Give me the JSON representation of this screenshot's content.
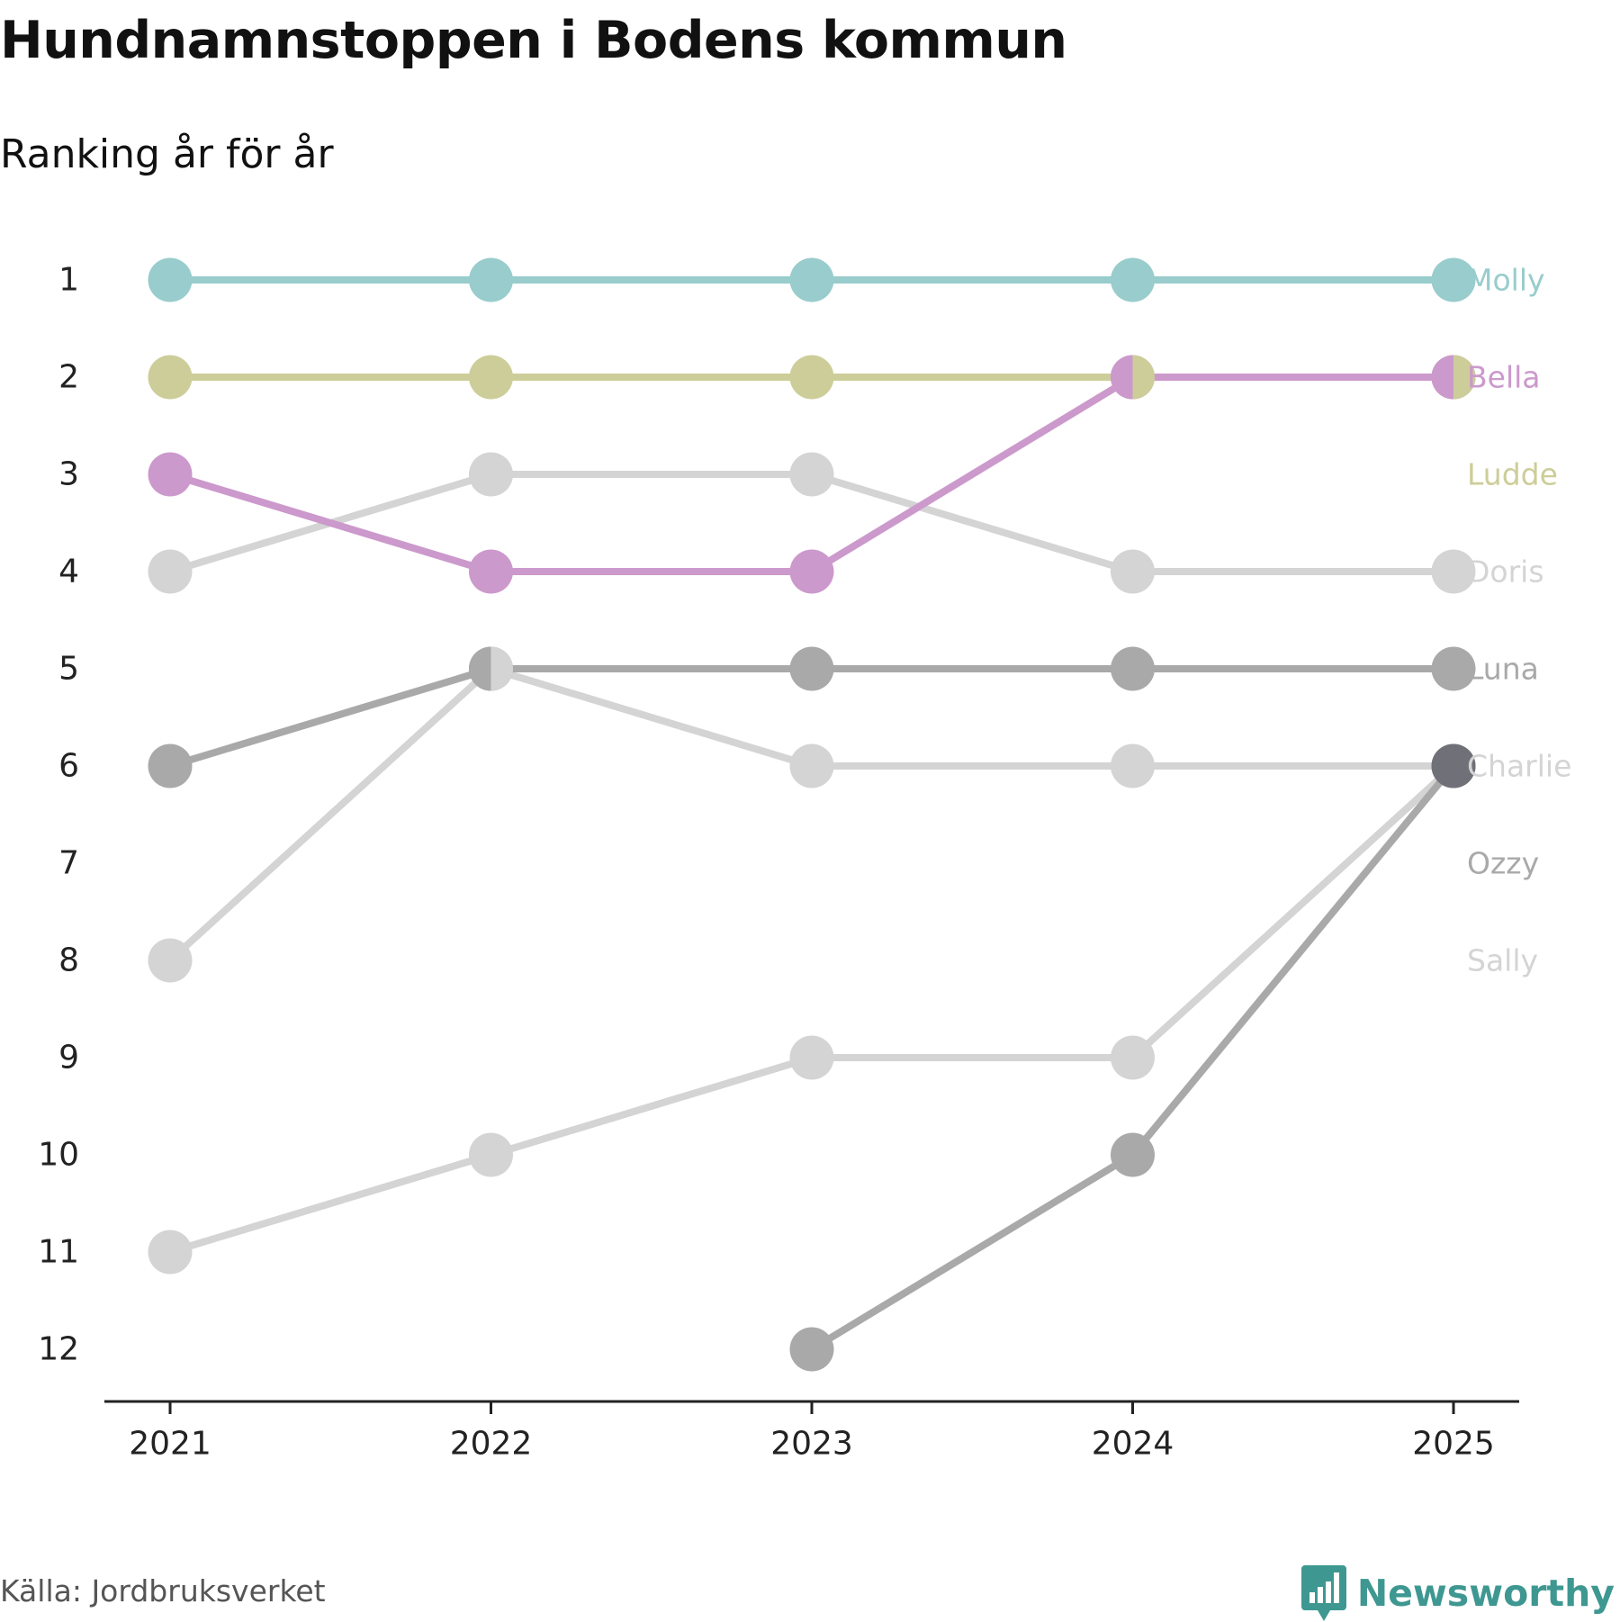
{
  "title": "Hundnamnstoppen i Bodens kommun",
  "subtitle": "Ranking år för år",
  "source": "Källa: Jordbruksverket",
  "brand": "Newsworthy",
  "brand_icon": "bar-chart-speech-bubble-icon",
  "colors": {
    "axis": "#222222",
    "tick_text": "#222222",
    "brand": "#3e9891"
  },
  "chart_data": {
    "type": "line",
    "title": "Hundnamnstoppen i Bodens kommun",
    "subtitle": "Ranking år för år",
    "xlabel": "",
    "ylabel": "",
    "x": [
      "2021",
      "2022",
      "2023",
      "2024",
      "2025"
    ],
    "y_ticks": [
      "1",
      "2",
      "3",
      "4",
      "5",
      "6",
      "7",
      "8",
      "9",
      "10",
      "11",
      "12"
    ],
    "ylim": [
      12,
      1
    ],
    "y_inverted": true,
    "grid": false,
    "series": [
      {
        "name": "Charlie",
        "color": "#d4d4d4",
        "values": [
          11,
          10,
          9,
          9,
          6
        ],
        "label_rank": 6
      },
      {
        "name": "Sally",
        "color": "#d4d4d4",
        "values": [
          8,
          5,
          6,
          6,
          6
        ],
        "label_rank": 8
      },
      {
        "name": "Doris",
        "color": "#d4d4d4",
        "values": [
          4,
          3,
          3,
          4,
          4
        ],
        "label_rank": 4
      },
      {
        "name": "Ozzy",
        "color": "#a9a9a9",
        "values": [
          null,
          null,
          12,
          10,
          6
        ],
        "label_rank": 7
      },
      {
        "name": "Luna",
        "color": "#a9a9a9",
        "values": [
          6,
          5,
          5,
          5,
          5
        ],
        "label_rank": 5
      },
      {
        "name": "Ludde",
        "color": "#cdcd99",
        "values": [
          2,
          2,
          2,
          2,
          2
        ],
        "label_rank": 3
      },
      {
        "name": "Bella",
        "color": "#cc99cc",
        "values": [
          3,
          4,
          4,
          2,
          2
        ],
        "label_rank": 2
      },
      {
        "name": "Molly",
        "color": "#99cccc",
        "values": [
          1,
          1,
          1,
          1,
          1
        ],
        "label_rank": 1
      }
    ],
    "shared_points": [
      {
        "x": "2022",
        "rank": 5,
        "series": [
          "Luna",
          "Sally"
        ],
        "colors": [
          "#a9a9a9",
          "#d4d4d4"
        ]
      },
      {
        "x": "2024",
        "rank": 2,
        "series": [
          "Bella",
          "Ludde"
        ],
        "colors": [
          "#cc99cc",
          "#cdcd99"
        ]
      },
      {
        "x": "2025",
        "rank": 2,
        "series": [
          "Bella",
          "Ludde"
        ],
        "colors": [
          "#cc99cc",
          "#cdcd99"
        ]
      },
      {
        "x": "2025",
        "rank": 6,
        "series": [
          "Charlie",
          "Sally",
          "Ozzy"
        ],
        "colors": [
          "#707078"
        ]
      }
    ]
  }
}
